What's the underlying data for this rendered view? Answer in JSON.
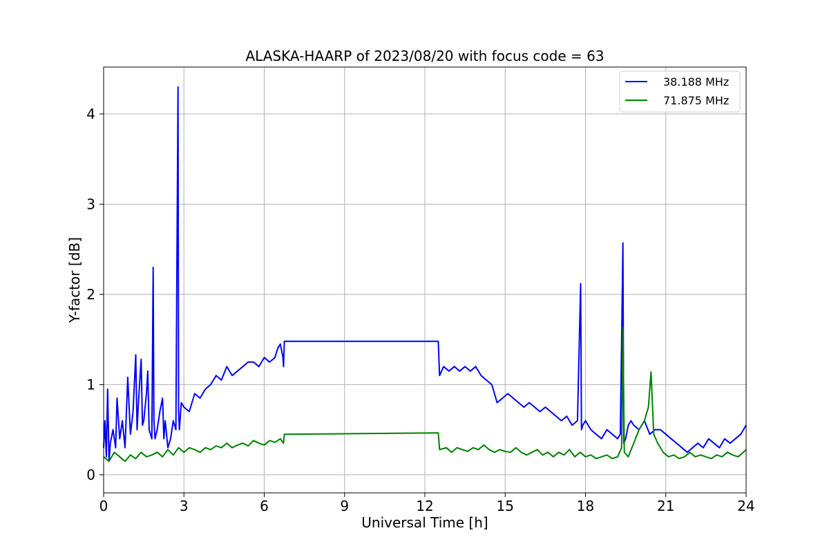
{
  "chart_data": {
    "type": "line",
    "title": "ALASKA-HAARP of 2023/08/20 with focus code = 63",
    "xlabel": "Universal Time [h]",
    "ylabel": "Y-factor [dB]",
    "xlim": [
      0,
      24
    ],
    "ylim": [
      -0.2,
      4.52
    ],
    "xticks": [
      0,
      3,
      6,
      9,
      12,
      15,
      18,
      21,
      24
    ],
    "xtick_labels": [
      "0",
      "3",
      "6",
      "9",
      "12",
      "15",
      "18",
      "21",
      "24"
    ],
    "yticks": [
      0,
      1,
      2,
      3,
      4
    ],
    "ytick_labels": [
      "0",
      "1",
      "2",
      "3",
      "4"
    ],
    "grid": true,
    "legend_position": "top-right",
    "series": [
      {
        "name": "38.188 MHz",
        "color": "#0000ff",
        "x": [
          0.0,
          0.05,
          0.1,
          0.15,
          0.2,
          0.25,
          0.35,
          0.45,
          0.5,
          0.6,
          0.7,
          0.8,
          0.9,
          1.0,
          1.1,
          1.2,
          1.25,
          1.3,
          1.4,
          1.45,
          1.5,
          1.6,
          1.65,
          1.7,
          1.8,
          1.85,
          1.88,
          1.92,
          2.0,
          2.1,
          2.2,
          2.25,
          2.3,
          2.4,
          2.5,
          2.6,
          2.7,
          2.78,
          2.8,
          2.83,
          2.9,
          3.0,
          3.2,
          3.4,
          3.6,
          3.8,
          4.0,
          4.2,
          4.4,
          4.6,
          4.8,
          5.0,
          5.2,
          5.4,
          5.6,
          5.8,
          6.0,
          6.2,
          6.4,
          6.5,
          6.6,
          6.7,
          6.72,
          6.75,
          9.0,
          12.45,
          12.5,
          12.55,
          12.7,
          12.9,
          13.1,
          13.3,
          13.5,
          13.7,
          13.9,
          14.1,
          14.3,
          14.5,
          14.7,
          14.9,
          15.1,
          15.3,
          15.5,
          15.7,
          15.9,
          16.1,
          16.3,
          16.5,
          16.7,
          16.9,
          17.1,
          17.3,
          17.5,
          17.7,
          17.82,
          17.85,
          17.9,
          18.0,
          18.2,
          18.4,
          18.6,
          18.8,
          19.0,
          19.2,
          19.3,
          19.35,
          19.4,
          19.43,
          19.5,
          19.6,
          19.7,
          19.8,
          20.0,
          20.2,
          20.4,
          20.6,
          20.8,
          21.0,
          21.2,
          21.4,
          21.6,
          21.8,
          22.0,
          22.2,
          22.4,
          22.6,
          22.8,
          23.0,
          23.2,
          23.4,
          23.6,
          23.8,
          24.0
        ],
        "y": [
          0.3,
          0.6,
          0.2,
          0.95,
          0.15,
          0.35,
          0.5,
          0.3,
          0.85,
          0.4,
          0.6,
          0.3,
          1.08,
          0.45,
          0.7,
          1.33,
          0.5,
          0.8,
          1.28,
          0.55,
          0.6,
          0.9,
          1.15,
          0.5,
          0.4,
          2.3,
          0.6,
          0.4,
          0.5,
          0.7,
          0.85,
          0.4,
          0.6,
          0.3,
          0.4,
          0.6,
          0.5,
          4.3,
          0.7,
          0.5,
          0.8,
          0.75,
          0.7,
          0.9,
          0.85,
          0.95,
          1.0,
          1.1,
          1.05,
          1.2,
          1.1,
          1.15,
          1.2,
          1.25,
          1.25,
          1.2,
          1.3,
          1.25,
          1.3,
          1.4,
          1.45,
          1.3,
          1.2,
          1.48,
          1.48,
          1.48,
          1.48,
          1.1,
          1.2,
          1.15,
          1.2,
          1.15,
          1.2,
          1.15,
          1.2,
          1.1,
          1.05,
          1.0,
          0.8,
          0.85,
          0.9,
          0.85,
          0.8,
          0.75,
          0.8,
          0.75,
          0.7,
          0.75,
          0.7,
          0.65,
          0.6,
          0.65,
          0.55,
          0.6,
          2.12,
          0.5,
          0.55,
          0.6,
          0.5,
          0.45,
          0.4,
          0.5,
          0.45,
          0.4,
          0.45,
          1.48,
          2.57,
          0.35,
          0.4,
          0.55,
          0.6,
          0.55,
          0.5,
          0.6,
          0.45,
          0.5,
          0.5,
          0.45,
          0.4,
          0.35,
          0.3,
          0.25,
          0.3,
          0.35,
          0.3,
          0.4,
          0.35,
          0.3,
          0.4,
          0.35,
          0.4,
          0.45,
          0.55
        ]
      },
      {
        "name": "71.875 MHz",
        "color": "#008000",
        "x": [
          0.0,
          0.2,
          0.4,
          0.6,
          0.8,
          1.0,
          1.2,
          1.4,
          1.6,
          1.8,
          2.0,
          2.2,
          2.4,
          2.6,
          2.8,
          3.0,
          3.2,
          3.4,
          3.6,
          3.8,
          4.0,
          4.2,
          4.4,
          4.6,
          4.8,
          5.0,
          5.2,
          5.4,
          5.6,
          5.8,
          6.0,
          6.2,
          6.4,
          6.6,
          6.72,
          6.75,
          9.0,
          12.45,
          12.5,
          12.55,
          12.8,
          13.0,
          13.2,
          13.4,
          13.6,
          13.8,
          14.0,
          14.2,
          14.4,
          14.6,
          14.8,
          15.0,
          15.2,
          15.4,
          15.6,
          15.8,
          16.0,
          16.2,
          16.4,
          16.6,
          16.8,
          17.0,
          17.2,
          17.4,
          17.6,
          17.8,
          18.0,
          18.2,
          18.4,
          18.6,
          18.8,
          19.0,
          19.2,
          19.35,
          19.4,
          19.45,
          19.6,
          19.8,
          20.0,
          20.2,
          20.35,
          20.45,
          20.55,
          20.7,
          20.9,
          21.1,
          21.3,
          21.5,
          21.7,
          21.9,
          22.1,
          22.3,
          22.5,
          22.7,
          22.9,
          23.1,
          23.3,
          23.5,
          23.7,
          23.9,
          24.0
        ],
        "y": [
          0.2,
          0.15,
          0.25,
          0.2,
          0.15,
          0.22,
          0.18,
          0.25,
          0.2,
          0.22,
          0.25,
          0.2,
          0.28,
          0.22,
          0.3,
          0.25,
          0.3,
          0.28,
          0.25,
          0.3,
          0.28,
          0.32,
          0.3,
          0.35,
          0.3,
          0.33,
          0.35,
          0.32,
          0.38,
          0.35,
          0.33,
          0.38,
          0.36,
          0.4,
          0.35,
          0.45,
          0.455,
          0.465,
          0.465,
          0.28,
          0.3,
          0.25,
          0.3,
          0.28,
          0.26,
          0.3,
          0.28,
          0.33,
          0.28,
          0.25,
          0.28,
          0.26,
          0.25,
          0.3,
          0.25,
          0.22,
          0.25,
          0.28,
          0.22,
          0.25,
          0.2,
          0.25,
          0.22,
          0.28,
          0.2,
          0.25,
          0.2,
          0.22,
          0.18,
          0.2,
          0.22,
          0.18,
          0.2,
          0.3,
          1.63,
          0.25,
          0.2,
          0.35,
          0.5,
          0.6,
          0.75,
          1.14,
          0.45,
          0.35,
          0.25,
          0.2,
          0.22,
          0.18,
          0.2,
          0.25,
          0.2,
          0.22,
          0.2,
          0.18,
          0.22,
          0.2,
          0.25,
          0.22,
          0.2,
          0.25,
          0.28
        ]
      }
    ]
  }
}
